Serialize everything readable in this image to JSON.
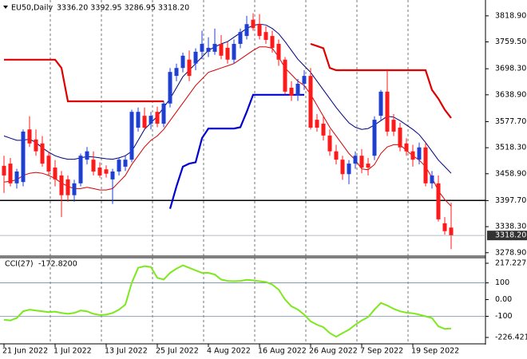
{
  "chart_data": {
    "type": "candlestick",
    "title": "EU50,Daily",
    "ohlc_label": "3336.20 3392.95 3286.95 3318.20",
    "last_price_label": "3318.20",
    "bull_color": "#1f3fd0",
    "bear_color": "#ff1a1a",
    "categories": [
      "21 Jun 2022",
      null,
      null,
      null,
      null,
      null,
      null,
      null,
      "1 Jul 2022",
      null,
      null,
      null,
      null,
      null,
      null,
      null,
      "13 Jul 2022",
      null,
      null,
      null,
      null,
      null,
      null,
      null,
      "25 Jul 2022",
      null,
      null,
      null,
      null,
      null,
      null,
      null,
      "4 Aug 2022",
      null,
      null,
      null,
      null,
      null,
      null,
      null,
      "16 Aug 2022",
      null,
      null,
      null,
      null,
      null,
      null,
      null,
      "26 Aug 2022",
      null,
      null,
      null,
      null,
      null,
      null,
      null,
      "7 Sep 2022",
      null,
      null,
      null,
      null,
      null,
      null,
      null,
      "19 Sep 2022",
      null,
      null,
      null,
      null,
      null,
      null
    ],
    "candles": [
      [
        3477,
        3500,
        3415,
        3455
      ],
      [
        3482,
        3495,
        3430,
        3437
      ],
      [
        3437,
        3470,
        3425,
        3464
      ],
      [
        3440,
        3560,
        3430,
        3555
      ],
      [
        3560,
        3590,
        3520,
        3528
      ],
      [
        3537,
        3560,
        3500,
        3510
      ],
      [
        3528,
        3545,
        3475,
        3482
      ],
      [
        3500,
        3510,
        3455,
        3464
      ],
      [
        3473,
        3490,
        3430,
        3446
      ],
      [
        3455,
        3465,
        3360,
        3410
      ],
      [
        3446,
        3455,
        3395,
        3410
      ],
      [
        3410,
        3445,
        3395,
        3437
      ],
      [
        3437,
        3505,
        3430,
        3500
      ],
      [
        3491,
        3520,
        3480,
        3510
      ],
      [
        3491,
        3510,
        3455,
        3464
      ],
      [
        3473,
        3485,
        3450,
        3455
      ],
      [
        3469,
        3478,
        3450,
        3459
      ],
      [
        3446,
        3470,
        3390,
        3464
      ],
      [
        3464,
        3495,
        3455,
        3491
      ],
      [
        3475,
        3500,
        3465,
        3491
      ],
      [
        3491,
        3605,
        3485,
        3600
      ],
      [
        3564,
        3610,
        3555,
        3600
      ],
      [
        3591,
        3610,
        3560,
        3564
      ],
      [
        3573,
        3600,
        3560,
        3591
      ],
      [
        3600,
        3612,
        3565,
        3573
      ],
      [
        3573,
        3625,
        3565,
        3619
      ],
      [
        3619,
        3700,
        3610,
        3691
      ],
      [
        3682,
        3710,
        3670,
        3700
      ],
      [
        3700,
        3735,
        3690,
        3728
      ],
      [
        3719,
        3740,
        3670,
        3682
      ],
      [
        3710,
        3745,
        3695,
        3737
      ],
      [
        3737,
        3785,
        3720,
        3755
      ],
      [
        3737,
        3770,
        3725,
        3746
      ],
      [
        3737,
        3790,
        3730,
        3755
      ],
      [
        3755,
        3775,
        3720,
        3728
      ],
      [
        3746,
        3760,
        3710,
        3719
      ],
      [
        3719,
        3765,
        3710,
        3755
      ],
      [
        3755,
        3790,
        3745,
        3782
      ],
      [
        3773,
        3819,
        3765,
        3800
      ],
      [
        3810,
        3825,
        3785,
        3791
      ],
      [
        3800,
        3823,
        3765,
        3773
      ],
      [
        3782,
        3795,
        3755,
        3764
      ],
      [
        3773,
        3785,
        3735,
        3746
      ],
      [
        3755,
        3765,
        3705,
        3719
      ],
      [
        3719,
        3725,
        3640,
        3646
      ],
      [
        3655,
        3670,
        3625,
        3637
      ],
      [
        3637,
        3675,
        3625,
        3664
      ],
      [
        3664,
        3695,
        3650,
        3682
      ],
      [
        3682,
        3700,
        3560,
        3564
      ],
      [
        3582,
        3595,
        3555,
        3564
      ],
      [
        3573,
        3590,
        3535,
        3546
      ],
      [
        3546,
        3560,
        3500,
        3510
      ],
      [
        3510,
        3525,
        3480,
        3491
      ],
      [
        3491,
        3500,
        3445,
        3458
      ],
      [
        3458,
        3490,
        3435,
        3482
      ],
      [
        3482,
        3510,
        3470,
        3500
      ],
      [
        3500,
        3515,
        3460,
        3473
      ],
      [
        3482,
        3495,
        3455,
        3473
      ],
      [
        3500,
        3590,
        3490,
        3582
      ],
      [
        3591,
        3650,
        3580,
        3646
      ],
      [
        3646,
        3695,
        3545,
        3555
      ],
      [
        3582,
        3595,
        3545,
        3555
      ],
      [
        3564,
        3575,
        3510,
        3519
      ],
      [
        3528,
        3540,
        3500,
        3510
      ],
      [
        3510,
        3525,
        3475,
        3491
      ],
      [
        3491,
        3530,
        3480,
        3519
      ],
      [
        3519,
        3530,
        3430,
        3437
      ],
      [
        3437,
        3465,
        3425,
        3455
      ],
      [
        3437,
        3455,
        3350,
        3355
      ],
      [
        3346,
        3360,
        3320,
        3328
      ],
      [
        3336.2,
        3392.95,
        3286.95,
        3318.2
      ]
    ],
    "overlays": [
      {
        "color": "#d40000",
        "width": 1,
        "values": [
          3440,
          3442,
          3445,
          3455,
          3460,
          3462,
          3460,
          3455,
          3448,
          3438,
          3430,
          3425,
          3425,
          3428,
          3425,
          3422,
          3422,
          3425,
          3440,
          3455,
          3480,
          3500,
          3520,
          3535,
          3545,
          3560,
          3580,
          3600,
          3620,
          3640,
          3660,
          3675,
          3690,
          3695,
          3700,
          3705,
          3710,
          3720,
          3730,
          3740,
          3748,
          3748,
          3745,
          3725,
          3700,
          3685,
          3670,
          3660,
          3640,
          3615,
          3590,
          3565,
          3545,
          3525,
          3505,
          3490,
          3470,
          3468,
          3480,
          3505,
          3520,
          3525,
          3525,
          3512,
          3500,
          3490,
          3475,
          3450,
          3420,
          3400,
          3385
        ]
      },
      {
        "color": "#000080",
        "width": 1,
        "values": [
          3545,
          3540,
          3535,
          3535,
          3538,
          3530,
          3518,
          3508,
          3500,
          3495,
          3492,
          3492,
          3495,
          3498,
          3497,
          3495,
          3493,
          3492,
          3495,
          3500,
          3510,
          3535,
          3560,
          3575,
          3590,
          3610,
          3630,
          3655,
          3680,
          3695,
          3710,
          3725,
          3740,
          3748,
          3755,
          3760,
          3770,
          3780,
          3790,
          3797,
          3800,
          3798,
          3790,
          3778,
          3760,
          3740,
          3720,
          3705,
          3690,
          3670,
          3650,
          3630,
          3610,
          3592,
          3575,
          3565,
          3560,
          3562,
          3570,
          3580,
          3590,
          3588,
          3580,
          3570,
          3560,
          3548,
          3530,
          3510,
          3490,
          3475,
          3460
        ]
      },
      {
        "color": "#e00000",
        "width": 2.2,
        "values": [
          3719,
          3719,
          3719,
          3719,
          3719,
          3719,
          3719,
          3719,
          3719,
          3700,
          3624,
          3624,
          3624,
          3624,
          3624,
          3624,
          3624,
          3624,
          3624,
          3624,
          3624,
          3624,
          3624,
          3624,
          3624,
          3624,
          null,
          null,
          null,
          null,
          null,
          null,
          null,
          null,
          null,
          null,
          null,
          null,
          null,
          null,
          null,
          null,
          null,
          null,
          null,
          null,
          null,
          null,
          3755,
          3750,
          3745,
          3700,
          3695,
          3695,
          3695,
          3695,
          3695,
          3695,
          3695,
          3695,
          3695,
          3695,
          3695,
          3695,
          3695,
          3695,
          3695,
          3650,
          3630,
          3605,
          3586
        ]
      },
      {
        "color": "#0000d0",
        "width": 2.2,
        "values": [
          null,
          null,
          null,
          null,
          null,
          null,
          null,
          null,
          null,
          null,
          null,
          null,
          null,
          null,
          null,
          null,
          null,
          null,
          null,
          null,
          null,
          null,
          null,
          null,
          null,
          null,
          3379,
          3430,
          3475,
          3482,
          3485,
          3540,
          3562,
          3562,
          3562,
          3562,
          3562,
          3565,
          3600,
          3639,
          3639,
          3639,
          3639,
          3639,
          3639,
          3639,
          3639,
          3639,
          null,
          null,
          null,
          null,
          null,
          null,
          null,
          null,
          null,
          null,
          null,
          null,
          null,
          null,
          null,
          null,
          null,
          null,
          null,
          null,
          null,
          null,
          null
        ]
      }
    ],
    "levels": [
      {
        "value": 3398,
        "color": "#000000"
      }
    ],
    "ylim": [
      3273,
      3855
    ],
    "yticks": [
      {
        "value": 3818.9,
        "label": "3818.90"
      },
      {
        "value": 3759.5,
        "label": "3759.50"
      },
      {
        "value": 3698.3,
        "label": "3698.30"
      },
      {
        "value": 3638.9,
        "label": "3638.90"
      },
      {
        "value": 3577.7,
        "label": "3577.70"
      },
      {
        "value": 3518.3,
        "label": "3518.30"
      },
      {
        "value": 3458.9,
        "label": "3458.90"
      },
      {
        "value": 3397.7,
        "label": "3397.70"
      },
      {
        "value": 3338.3,
        "label": "3338.30"
      },
      {
        "value": 3278.9,
        "label": "3278.90"
      }
    ],
    "indicator": {
      "type": "line",
      "title": "CCI(27)",
      "value_label": "-172.8200",
      "color": "#7ee81e",
      "values": [
        -120,
        -125,
        -110,
        -70,
        -60,
        -65,
        -70,
        -75,
        -72,
        -80,
        -85,
        -80,
        -65,
        -70,
        -85,
        -92,
        -90,
        -80,
        -60,
        -30,
        100,
        190,
        200,
        195,
        130,
        120,
        160,
        185,
        205,
        190,
        175,
        160,
        160,
        150,
        120,
        112,
        110,
        112,
        118,
        115,
        110,
        105,
        90,
        60,
        0,
        -40,
        -60,
        -90,
        -130,
        -150,
        -165,
        -200,
        -222,
        -200,
        -180,
        -150,
        -125,
        -105,
        -60,
        -20,
        -35,
        -55,
        -70,
        -78,
        -82,
        -90,
        -100,
        -110,
        -160,
        -175,
        -172.82
      ],
      "levels": [
        100,
        -100
      ],
      "ylim": [
        -226.4214,
        217.227
      ],
      "yticks": [
        217.227,
        100,
        {
          "value": 0,
          "label": "0.00"
        },
        -100,
        -226.4214
      ]
    }
  }
}
